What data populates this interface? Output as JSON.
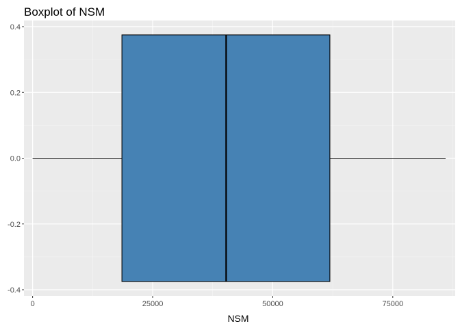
{
  "chart_data": {
    "type": "boxplot",
    "title": "Boxplot of NSM",
    "xlabel": "NSM",
    "ylabel": "",
    "xlim": [
      -1800,
      88000
    ],
    "ylim": [
      -0.4,
      0.4
    ],
    "x_ticks": [
      0,
      25000,
      50000,
      75000
    ],
    "x_tick_labels": [
      "0",
      "25000",
      "50000",
      "75000"
    ],
    "y_ticks": [
      0.4,
      0.2,
      0.0,
      -0.2,
      -0.4
    ],
    "y_tick_labels": [
      "0.4",
      "0.2",
      "0.0",
      "-0.2",
      "-0.4"
    ],
    "box": {
      "min": 0,
      "q1": 18600,
      "median": 40300,
      "q3": 61900,
      "max": 86000,
      "y_center": 0.0,
      "half_width": 0.375
    },
    "grid": true,
    "colors": {
      "panel_background": "#EBEBEB",
      "grid_major": "#FFFFFF",
      "grid_minor": "#F5F5F5",
      "box_fill": "#4682B4",
      "box_outline": "#000000",
      "text": "#000000",
      "tick_text": "#4D4D4D",
      "tick_mark": "#333333"
    }
  }
}
